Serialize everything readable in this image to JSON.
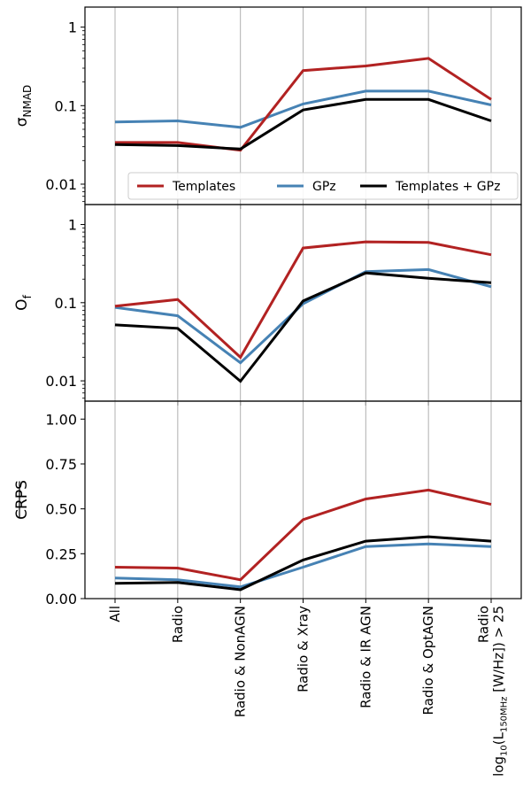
{
  "chart_data": {
    "type": "line",
    "categories": [
      "All",
      "Radio",
      "Radio & NonAGN",
      "Radio & Xray",
      "Radio & IR AGN",
      "Radio & OptAGN",
      "Radio log10(L150MHz [W/Hz]) > 25"
    ],
    "category_labels": [
      {
        "lines": [
          "All"
        ]
      },
      {
        "lines": [
          "Radio"
        ]
      },
      {
        "lines": [
          "Radio & NonAGN"
        ]
      },
      {
        "lines": [
          "Radio & Xray"
        ]
      },
      {
        "lines": [
          "Radio & IR AGN"
        ]
      },
      {
        "lines": [
          "Radio & OptAGN"
        ]
      },
      {
        "lines": [
          "Radio"
        ],
        "math": {
          "pre": "log",
          "pre_sub": "10",
          "paren_open": "(L",
          "sub": "150MHz",
          "post": " [W/Hz]) > 25"
        }
      }
    ],
    "colors": {
      "Templates": "#b22222",
      "GPz": "#4682b4",
      "Templates + GPz": "#000000",
      "grid": "#b0b0b0"
    },
    "legend": {
      "placement": "lower-right of top panel",
      "entries": [
        "Templates",
        "GPz",
        "Templates + GPz"
      ]
    },
    "panels": [
      {
        "ylabel": "σ",
        "ylabel_sub": "NMAD",
        "yscale": "log",
        "ylim": [
          0.0055,
          1.8
        ],
        "yticks": [
          {
            "value": 0.01,
            "label": "0.01"
          },
          {
            "value": 0.1,
            "label": "0.1"
          },
          {
            "value": 1,
            "label": "1"
          }
        ],
        "grid_x": true,
        "series": [
          {
            "name": "Templates",
            "values": [
              0.034,
              0.034,
              0.027,
              0.28,
              0.32,
              0.4,
              0.12
            ]
          },
          {
            "name": "GPz",
            "values": [
              0.062,
              0.064,
              0.053,
              0.105,
              0.153,
              0.153,
              0.102
            ]
          },
          {
            "name": "Templates + GPz",
            "values": [
              0.032,
              0.031,
              0.028,
              0.088,
              0.12,
              0.12,
              0.064
            ]
          }
        ]
      },
      {
        "ylabel": "O",
        "ylabel_sub": "f",
        "yscale": "log",
        "ylim": [
          0.0055,
          1.8
        ],
        "yticks": [
          {
            "value": 0.01,
            "label": "0.01"
          },
          {
            "value": 0.1,
            "label": "0.1"
          },
          {
            "value": 1,
            "label": "1"
          }
        ],
        "grid_x": true,
        "series": [
          {
            "name": "Templates",
            "values": [
              0.09,
              0.11,
              0.02,
              0.5,
              0.6,
              0.59,
              0.41
            ]
          },
          {
            "name": "GPz",
            "values": [
              0.087,
              0.068,
              0.017,
              0.097,
              0.25,
              0.265,
              0.16
            ]
          },
          {
            "name": "Templates + GPz",
            "values": [
              0.052,
              0.047,
              0.0099,
              0.105,
              0.24,
              0.205,
              0.18
            ]
          }
        ]
      },
      {
        "ylabel": "CRPS",
        "ylabel_overline": true,
        "yscale": "linear",
        "ylim": [
          0.0,
          1.1
        ],
        "yticks": [
          {
            "value": 0.0,
            "label": "0.00"
          },
          {
            "value": 0.25,
            "label": "0.25"
          },
          {
            "value": 0.5,
            "label": "0.50"
          },
          {
            "value": 0.75,
            "label": "0.75"
          },
          {
            "value": 1.0,
            "label": "1.00"
          }
        ],
        "grid_x": true,
        "series": [
          {
            "name": "Templates",
            "values": [
              0.175,
              0.17,
              0.105,
              0.44,
              0.555,
              0.605,
              0.525
            ]
          },
          {
            "name": "GPz",
            "values": [
              0.115,
              0.105,
              0.065,
              0.175,
              0.29,
              0.305,
              0.29
            ]
          },
          {
            "name": "Templates + GPz",
            "values": [
              0.085,
              0.09,
              0.05,
              0.215,
              0.32,
              0.345,
              0.32
            ]
          }
        ]
      }
    ]
  }
}
